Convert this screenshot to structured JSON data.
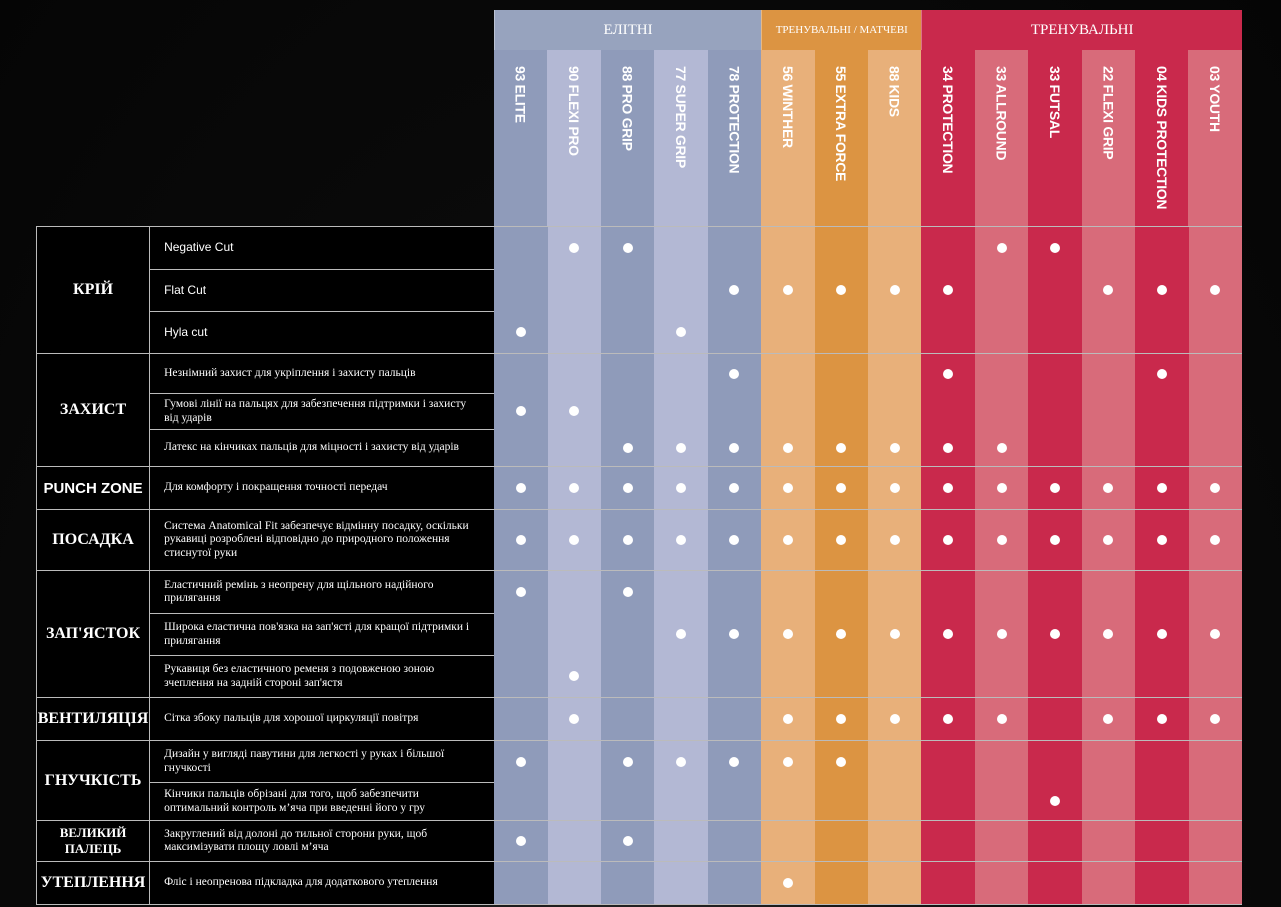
{
  "colors": {
    "group_headers": [
      "#97a3be",
      "#dc9442",
      "#c9294c"
    ],
    "columns": [
      "#8f9bba",
      "#b3b8d4",
      "#8f9bba",
      "#b3b8d4",
      "#8f9bba",
      "#e8b07a",
      "#dc9442",
      "#e8b07a",
      "#c9294c",
      "#d86b7a",
      "#c9294c",
      "#d86b7a",
      "#c9294c",
      "#d86b7a"
    ]
  },
  "groups": [
    {
      "label": "ЕЛІТНІ",
      "span": 5
    },
    {
      "label": "ТРЕНУВАЛЬНІ / МАТЧЕВІ",
      "span": 3
    },
    {
      "label": "ТРЕНУВАЛЬНІ",
      "span": 6
    }
  ],
  "products": [
    "93 ELITE",
    "90 FLEXI PRO",
    "88 PRO GRIP",
    "77 SUPER GRIP",
    "78 PROTECTION",
    "56 WINTHER",
    "55 EXTRA FORCE",
    "88 KIDS",
    "34 PROTECTION",
    "33 ALLROUND",
    "33 FUTSAL",
    "22  FLEXI GRIP",
    "04 KIDS PROTECTION",
    "03 YOUTH"
  ],
  "sections": [
    {
      "category": "КРІЙ",
      "features": [
        {
          "text": "Negative Cut",
          "h": 42,
          "marks": [
            1,
            2,
            9,
            10
          ]
        },
        {
          "text": "Flat Cut",
          "h": 42,
          "marks": [
            4,
            5,
            6,
            7,
            8,
            11,
            12,
            13
          ]
        },
        {
          "text": "Hyla cut",
          "h": 42,
          "marks": [
            0,
            3
          ]
        }
      ]
    },
    {
      "category": "ЗАХИСТ",
      "features": [
        {
          "text": "Незнімний захист для укріплення і захисту пальців",
          "h": 39,
          "marks": [
            4,
            8,
            12
          ]
        },
        {
          "text": "Гумові лінії на пальцях для забезпечення підтримки і захисту від ударів",
          "h": 36,
          "marks": [
            0,
            1
          ]
        },
        {
          "text": "Латекс на кінчиках пальців для міцності і захисту від ударів",
          "h": 37,
          "marks": [
            2,
            3,
            4,
            5,
            6,
            7,
            8,
            9
          ]
        }
      ]
    },
    {
      "category": "PUNCH ZONE",
      "features": [
        {
          "text": "Для комфорту і покращення точності передач",
          "h": 42,
          "marks": [
            0,
            1,
            2,
            3,
            4,
            5,
            6,
            7,
            8,
            9,
            10,
            11,
            12,
            13
          ]
        }
      ]
    },
    {
      "category": "ПОСАДКА",
      "features": [
        {
          "text": "Система Anatomical Fit забезпечує відмінну посадку, оскільки рукавиці розроблені відповідно до природного положення стиснутої руки",
          "h": 60,
          "marks": [
            0,
            1,
            2,
            3,
            4,
            5,
            6,
            7,
            8,
            9,
            10,
            11,
            12,
            13
          ]
        }
      ]
    },
    {
      "category": "ЗАП'ЯСТОК",
      "features": [
        {
          "text": "Еластичний ремінь з неопрену для щільного надійного прилягання",
          "h": 42,
          "marks": [
            0,
            2
          ]
        },
        {
          "text": "Широка еластична пов'язка на зап'ясті для кращої підтримки і прилягання",
          "h": 42,
          "marks": [
            3,
            4,
            5,
            6,
            7,
            8,
            9,
            10,
            11,
            12,
            13
          ]
        },
        {
          "text": "Рукавиця без еластичного ременя з подовженою зоною зчеплення на задній стороні зап'ястя",
          "h": 42,
          "marks": [
            1
          ]
        }
      ]
    },
    {
      "category": "ВЕНТИЛЯЦІЯ",
      "features": [
        {
          "text": "Сітка збоку пальців для хорошої циркуляції повітря",
          "h": 42,
          "marks": [
            1,
            5,
            6,
            7,
            8,
            9,
            11,
            12,
            13
          ]
        }
      ]
    },
    {
      "category": "ГНУЧКІСТЬ",
      "features": [
        {
          "text": "Дизайн у вигляді павутини для легкості у руках і більшої гнучкості",
          "h": 41,
          "marks": [
            0,
            2,
            3,
            4,
            5,
            6
          ]
        },
        {
          "text": "Кінчики пальців обрізані для того, щоб забезпечити оптимальний контроль м’яча при введенні його у гру",
          "h": 38,
          "marks": [
            10
          ]
        }
      ]
    },
    {
      "category": "ВЕЛИКИЙ ПАЛЕЦЬ",
      "features": [
        {
          "text": "Закруглений від долоні до тильної сторони руки, щоб максимізувати площу ловлі м’яча",
          "h": 40,
          "marks": [
            0,
            2
          ]
        }
      ]
    },
    {
      "category": "УТЕПЛЕННЯ",
      "features": [
        {
          "text": "Фліс і неопренова підкладка для додаткового утеплення",
          "h": 42,
          "marks": [
            5
          ]
        }
      ]
    }
  ]
}
